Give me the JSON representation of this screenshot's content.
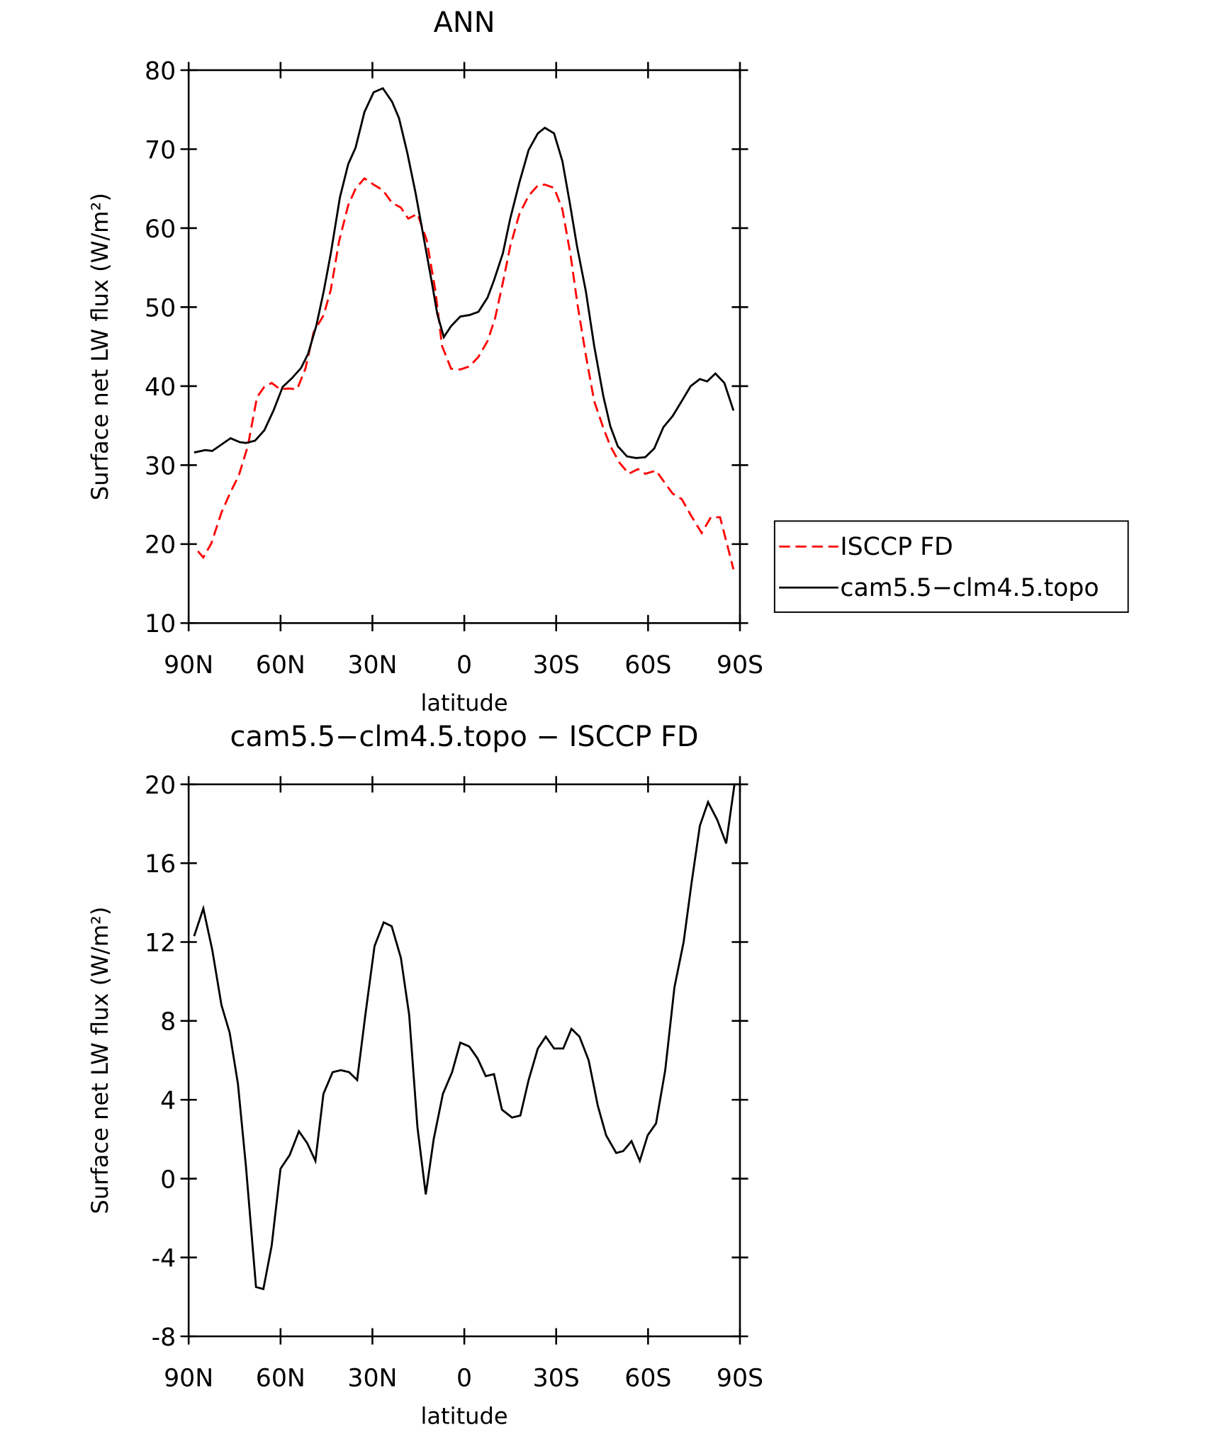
{
  "chart_data": [
    {
      "type": "line",
      "title": "ANN",
      "xlabel": "latitude",
      "ylabel": "Surface net LW flux (W/m²)",
      "xlim": [
        90,
        -90
      ],
      "xticks": [
        {
          "value": 90,
          "label": "90N"
        },
        {
          "value": 60,
          "label": "60N"
        },
        {
          "value": 30,
          "label": "30N"
        },
        0,
        {
          "value": -30,
          "label": "30S"
        },
        {
          "value": -60,
          "label": "60S"
        },
        {
          "value": -90,
          "label": "90S"
        }
      ],
      "ylim": [
        10,
        80
      ],
      "yticks": [
        10,
        20,
        30,
        40,
        50,
        60,
        70,
        80
      ],
      "legend": "right",
      "series": [
        {
          "name": "ISCCP FD",
          "color": "#ff0000",
          "dash": true,
          "x": [
            87.0,
            85.2,
            82.6,
            79.3,
            76.3,
            73.6,
            70.7,
            67.7,
            65.3,
            62.9,
            60.2,
            57.3,
            54.6,
            51.9,
            49.2,
            45.9,
            43.6,
            40.9,
            37.9,
            35.5,
            32.6,
            29.6,
            26.6,
            23.6,
            20.7,
            18.3,
            15.3,
            12.3,
            9.4,
            7.3,
            4.3,
            1.3,
            -1.7,
            -4.6,
            -7.6,
            -10.0,
            -12.6,
            -15.0,
            -18.0,
            -21.0,
            -24.0,
            -26.3,
            -29.3,
            -32.0,
            -34.7,
            -37.0,
            -39.7,
            -42.4,
            -45.4,
            -47.7,
            -50.7,
            -53.7,
            -56.7,
            -59.1,
            -62.6,
            -65.0,
            -68.0,
            -71.0,
            -73.9,
            -77.5,
            -80.5,
            -83.5,
            -87.9
          ],
          "values": [
            19.1,
            18.3,
            20.1,
            24.0,
            26.6,
            28.7,
            32.4,
            38.6,
            39.9,
            40.4,
            39.6,
            39.7,
            39.6,
            42.2,
            46.8,
            49.0,
            52.2,
            58.3,
            62.9,
            65.0,
            66.3,
            65.5,
            64.8,
            63.2,
            62.6,
            61.2,
            61.8,
            58.5,
            52.0,
            45.1,
            42.2,
            42.1,
            42.5,
            43.7,
            45.7,
            48.5,
            53.1,
            57.7,
            61.8,
            64.1,
            65.4,
            65.5,
            65.1,
            62.4,
            56.6,
            50.2,
            43.9,
            38.1,
            34.7,
            32.4,
            30.3,
            28.9,
            29.5,
            28.9,
            29.3,
            28.0,
            26.4,
            25.7,
            23.7,
            21.4,
            23.4,
            23.4,
            16.8
          ]
        },
        {
          "name": "cam5.5−clm4.5.topo",
          "color": "#000000",
          "x": [
            88.2,
            84.6,
            82.3,
            79.3,
            76.3,
            73.3,
            71.3,
            68.3,
            65.3,
            62.3,
            59.3,
            56.3,
            53.3,
            51.0,
            48.3,
            45.9,
            43.6,
            40.6,
            37.9,
            35.5,
            32.6,
            29.6,
            26.6,
            23.6,
            21.3,
            18.6,
            15.9,
            13.2,
            10.6,
            8.8,
            6.7,
            4.3,
            1.3,
            -1.7,
            -4.6,
            -7.6,
            -9.7,
            -12.6,
            -15.0,
            -18.0,
            -21.0,
            -24.0,
            -26.3,
            -29.3,
            -32.0,
            -34.4,
            -36.8,
            -39.7,
            -42.4,
            -45.4,
            -47.7,
            -50.1,
            -53.1,
            -56.1,
            -59.1,
            -62.0,
            -65.0,
            -68.0,
            -71.0,
            -73.9,
            -76.9,
            -79.3,
            -82.0,
            -84.9,
            -87.9
          ],
          "values": [
            31.6,
            31.9,
            31.8,
            32.6,
            33.4,
            32.9,
            32.8,
            33.1,
            34.4,
            36.9,
            39.9,
            41.0,
            42.3,
            44.1,
            47.7,
            52.0,
            56.8,
            63.9,
            68.1,
            70.2,
            74.7,
            77.2,
            77.7,
            76.0,
            73.9,
            69.5,
            64.4,
            58.7,
            53.1,
            49.1,
            46.2,
            47.6,
            48.8,
            49.0,
            49.4,
            51.2,
            53.4,
            56.8,
            61.2,
            65.8,
            69.9,
            72.0,
            72.7,
            72.0,
            68.5,
            63.3,
            57.7,
            52.0,
            45.1,
            38.7,
            34.9,
            32.4,
            31.1,
            30.9,
            31.0,
            32.1,
            34.8,
            36.2,
            38.1,
            40.0,
            40.9,
            40.6,
            41.6,
            40.4,
            36.9
          ]
        }
      ]
    },
    {
      "type": "line",
      "title": "cam5.5−clm4.5.topo − ISCCP FD",
      "xlabel": "latitude",
      "ylabel": "Surface net LW flux (W/m²)",
      "xlim": [
        90,
        -90
      ],
      "xticks": [
        {
          "value": 90,
          "label": "90N"
        },
        {
          "value": 60,
          "label": "60N"
        },
        {
          "value": 30,
          "label": "30N"
        },
        0,
        {
          "value": -30,
          "label": "30S"
        },
        {
          "value": -60,
          "label": "60S"
        },
        {
          "value": -90,
          "label": "90S"
        }
      ],
      "ylim": [
        -8,
        20
      ],
      "yticks": [
        -8,
        -4,
        0,
        4,
        8,
        12,
        16,
        20
      ],
      "series": [
        {
          "color": "#000000",
          "x": [
            88.2,
            85.2,
            82.3,
            79.3,
            76.6,
            73.9,
            71.3,
            68.0,
            65.6,
            62.9,
            60.0,
            57.0,
            54.0,
            51.3,
            48.6,
            46.0,
            43.0,
            40.3,
            37.6,
            35.0,
            32.3,
            29.3,
            26.3,
            23.7,
            20.7,
            18.0,
            15.3,
            12.6,
            10.0,
            7.0,
            4.0,
            1.3,
            -1.6,
            -4.3,
            -7.0,
            -9.7,
            -12.3,
            -15.6,
            -18.3,
            -21.0,
            -24.0,
            -26.6,
            -29.3,
            -32.3,
            -35.0,
            -37.6,
            -40.6,
            -43.6,
            -46.3,
            -49.6,
            -51.9,
            -54.6,
            -57.3,
            -59.9,
            -62.6,
            -65.6,
            -68.6,
            -71.6,
            -74.2,
            -76.9,
            -79.6,
            -82.6,
            -85.5,
            -88.2
          ],
          "values": [
            12.3,
            13.7,
            11.6,
            8.8,
            7.4,
            4.8,
            0.6,
            -5.5,
            -5.6,
            -3.4,
            0.5,
            1.2,
            2.4,
            1.8,
            0.9,
            4.3,
            5.4,
            5.5,
            5.4,
            5.0,
            8.3,
            11.8,
            13.0,
            12.8,
            11.2,
            8.3,
            2.6,
            -0.8,
            2.0,
            4.3,
            5.4,
            6.9,
            6.7,
            6.1,
            5.2,
            5.3,
            3.5,
            3.1,
            3.2,
            5.0,
            6.6,
            7.2,
            6.6,
            6.6,
            7.6,
            7.2,
            6.0,
            3.7,
            2.2,
            1.3,
            1.4,
            1.9,
            0.9,
            2.2,
            2.8,
            5.5,
            9.7,
            12.0,
            15.0,
            17.9,
            19.1,
            18.2,
            17.0,
            20.0
          ]
        }
      ]
    }
  ]
}
